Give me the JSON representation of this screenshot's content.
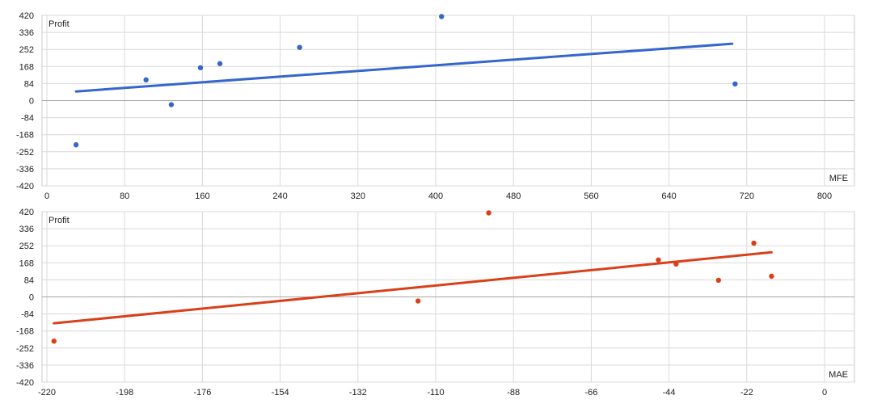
{
  "chart_data": [
    {
      "type": "scatter",
      "xlabel": "MFE",
      "ylabel": "Profit",
      "xlim": [
        0,
        800
      ],
      "ylim": [
        -420,
        420
      ],
      "x_ticks": [
        0,
        80,
        160,
        240,
        320,
        400,
        480,
        560,
        640,
        720,
        800
      ],
      "y_ticks": [
        -420,
        -336,
        -252,
        -168,
        -84,
        0,
        84,
        168,
        252,
        336,
        420
      ],
      "grid": true,
      "series": [
        {
          "color": "#3566cc",
          "points": [
            [
              30,
              -218
            ],
            [
              102,
              102
            ],
            [
              128,
              -20
            ],
            [
              158,
              162
            ],
            [
              178,
              182
            ],
            [
              260,
              262
            ],
            [
              406,
              414
            ],
            [
              708,
              82
            ]
          ]
        }
      ],
      "trendline": {
        "color": "#3566cc",
        "from": [
          30,
          45
        ],
        "to": [
          705,
          280
        ]
      }
    },
    {
      "type": "scatter",
      "xlabel": "MAE",
      "ylabel": "Profit",
      "xlim": [
        -220,
        0
      ],
      "ylim": [
        -420,
        420
      ],
      "x_ticks": [
        -220,
        -198,
        -176,
        -154,
        -132,
        -110,
        -88,
        -66,
        -44,
        -22,
        0
      ],
      "y_ticks": [
        -420,
        -336,
        -252,
        -168,
        -84,
        0,
        84,
        168,
        252,
        336,
        420
      ],
      "grid": true,
      "series": [
        {
          "color": "#d9401a",
          "points": [
            [
              -218,
              -218
            ],
            [
              -115,
              -20
            ],
            [
              -95,
              414
            ],
            [
              -47,
              182
            ],
            [
              -42,
              162
            ],
            [
              -30,
              82
            ],
            [
              -20,
              265
            ],
            [
              -15,
              102
            ]
          ]
        }
      ],
      "trendline": {
        "color": "#d9401a",
        "from": [
          -218,
          -130
        ],
        "to": [
          -15,
          220
        ]
      }
    }
  ]
}
